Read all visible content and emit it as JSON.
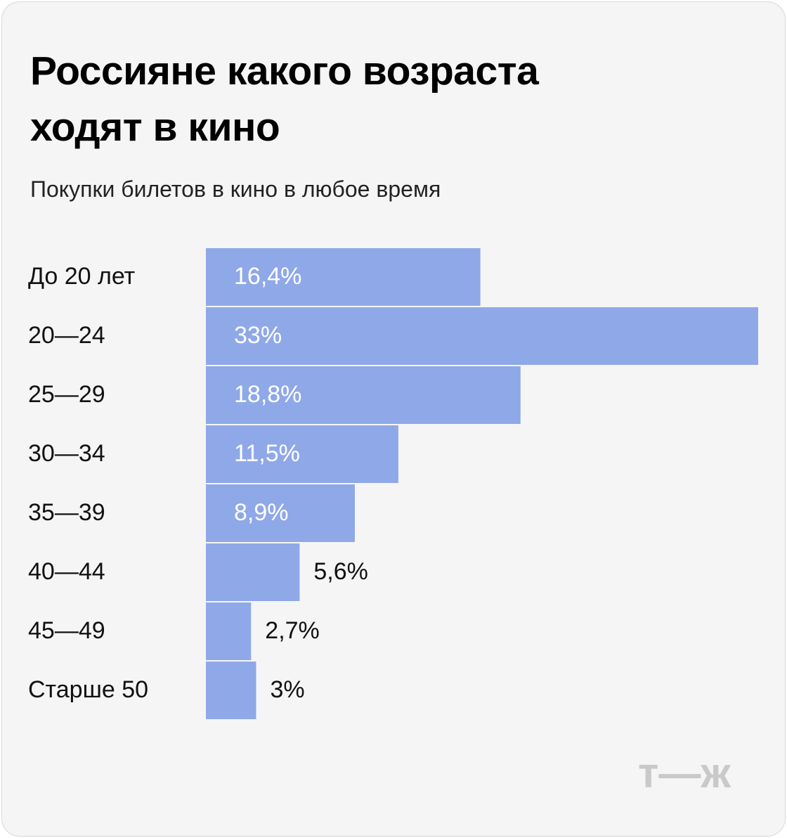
{
  "chart_data": {
    "type": "barh",
    "title": "Россияне какого возраста ходят в кино",
    "subtitle": "Покупки билетов в кино в любое время",
    "categories": [
      "До 20 лет",
      "20—24",
      "25—29",
      "30—34",
      "35—39",
      "40—44",
      "45—49",
      "Старше 50"
    ],
    "values": [
      16.4,
      33,
      18.8,
      11.5,
      8.9,
      5.6,
      2.7,
      3
    ],
    "value_labels": [
      "16,4%",
      "33%",
      "18,8%",
      "11,5%",
      "8,9%",
      "5,6%",
      "2,7%",
      "3%"
    ],
    "color": "#8fa8e8"
  },
  "logo": "т—ж"
}
